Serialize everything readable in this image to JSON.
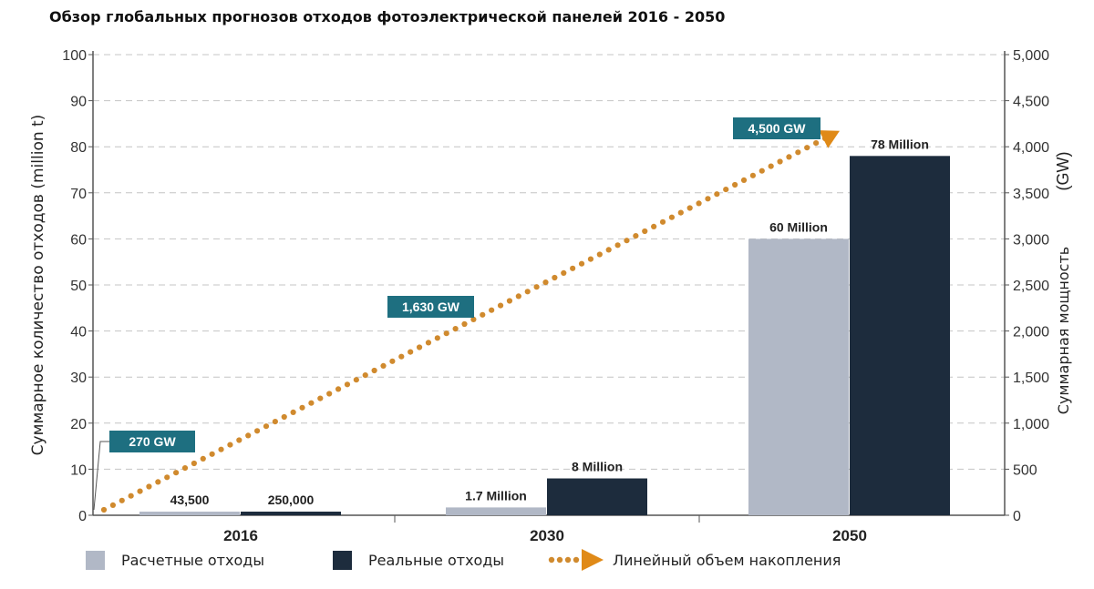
{
  "chart_data": {
    "type": "bar",
    "title": "Обзор глобальных прогнозов отходов фотоэлектрической панелей 2016 - 2050",
    "categories": [
      "2016",
      "2030",
      "2050"
    ],
    "ylabel": "Суммарное количество отходов (million t)",
    "y2label": "Суммарная мощность",
    "y2unit": "(GW)",
    "ylim": [
      0,
      100
    ],
    "y2lim": [
      0,
      5000
    ],
    "yticks": [
      "0",
      "10",
      "20",
      "30",
      "40",
      "50",
      "60",
      "70",
      "80",
      "90",
      "100"
    ],
    "y2ticks": [
      "0",
      "500",
      "1,000",
      "1,500",
      "2,000",
      "2,500",
      "3,000",
      "3,500",
      "4,000",
      "4,500",
      "5,000"
    ],
    "grid": "horizontal dashed",
    "series": [
      {
        "name": "Расчетные отходы",
        "color": "#b1b8c6",
        "values": [
          0.0435,
          1.7,
          60
        ],
        "labels": [
          "43,500",
          "1.7 Million",
          "60 Million"
        ]
      },
      {
        "name": "Реальные отходы",
        "color": "#1d2c3d",
        "values": [
          0.25,
          8,
          78
        ],
        "labels": [
          "250,000",
          "8 Million",
          "78 Million"
        ]
      }
    ],
    "line": {
      "name": "Линейный объем накопления",
      "color": "#d08a2e",
      "points": [
        {
          "x": "2016",
          "y2": 270,
          "label": "270 GW"
        },
        {
          "x": "2030",
          "y2": 1630,
          "label": "1,630 GW"
        },
        {
          "x": "2050",
          "y2": 4500,
          "label": "4,500 GW"
        }
      ]
    },
    "label_box_color": "#1e6f80"
  }
}
